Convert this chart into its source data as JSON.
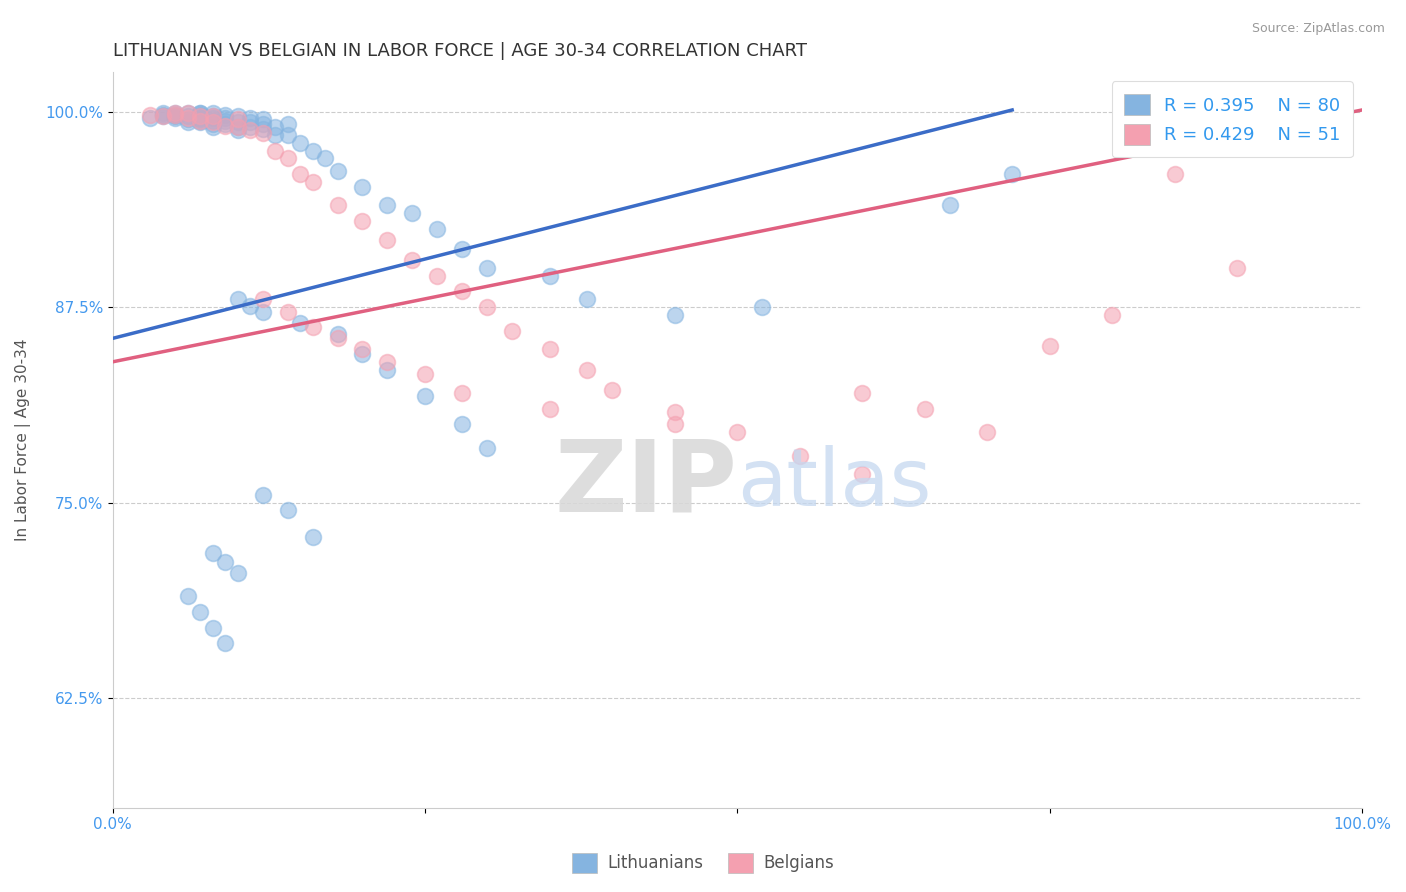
{
  "title": "LITHUANIAN VS BELGIAN IN LABOR FORCE | AGE 30-34 CORRELATION CHART",
  "source": "Source: ZipAtlas.com",
  "ylabel": "In Labor Force | Age 30-34",
  "xlim": [
    0.0,
    1.0
  ],
  "ylim": [
    0.555,
    1.025
  ],
  "yticks": [
    0.625,
    0.75,
    0.875,
    1.0
  ],
  "ytick_labels": [
    "62.5%",
    "75.0%",
    "87.5%",
    "100.0%"
  ],
  "xticks": [
    0.0,
    0.25,
    0.5,
    0.75,
    1.0
  ],
  "xtick_labels": [
    "0.0%",
    "",
    "",
    "",
    "100.0%"
  ],
  "legend_label1": "Lithuanians",
  "legend_label2": "Belgians",
  "blue_color": "#85B4E0",
  "pink_color": "#F4A0B0",
  "blue_line_color": "#3B6CC7",
  "pink_line_color": "#E06080",
  "title_fontsize": 13,
  "axis_label_fontsize": 11,
  "tick_fontsize": 11,
  "background_color": "#FFFFFF",
  "grid_color": "#CCCCCC",
  "watermark_zip": "ZIP",
  "watermark_atlas": "atlas",
  "lith_x": [
    0.03,
    0.04,
    0.04,
    0.04,
    0.05,
    0.05,
    0.05,
    0.05,
    0.06,
    0.06,
    0.06,
    0.06,
    0.07,
    0.07,
    0.07,
    0.07,
    0.07,
    0.07,
    0.07,
    0.07,
    0.08,
    0.08,
    0.08,
    0.08,
    0.08,
    0.08,
    0.09,
    0.09,
    0.09,
    0.09,
    0.1,
    0.1,
    0.1,
    0.1,
    0.11,
    0.11,
    0.11,
    0.12,
    0.12,
    0.12,
    0.13,
    0.13,
    0.14,
    0.14,
    0.15,
    0.16,
    0.17,
    0.18,
    0.2,
    0.22,
    0.24,
    0.26,
    0.28,
    0.3,
    0.35,
    0.38,
    0.45,
    0.52,
    0.67,
    0.72,
    0.1,
    0.11,
    0.12,
    0.15,
    0.18,
    0.2,
    0.22,
    0.25,
    0.28,
    0.3,
    0.12,
    0.14,
    0.16,
    0.08,
    0.09,
    0.1,
    0.06,
    0.07,
    0.08,
    0.09
  ],
  "lith_y": [
    0.996,
    0.997,
    0.998,
    0.999,
    0.996,
    0.997,
    0.998,
    0.999,
    0.993,
    0.995,
    0.997,
    0.999,
    0.993,
    0.994,
    0.995,
    0.996,
    0.997,
    0.998,
    0.999,
    0.999,
    0.99,
    0.992,
    0.994,
    0.996,
    0.997,
    0.999,
    0.992,
    0.994,
    0.996,
    0.998,
    0.988,
    0.99,
    0.993,
    0.997,
    0.99,
    0.993,
    0.996,
    0.989,
    0.992,
    0.995,
    0.985,
    0.99,
    0.985,
    0.992,
    0.98,
    0.975,
    0.97,
    0.962,
    0.952,
    0.94,
    0.935,
    0.925,
    0.912,
    0.9,
    0.895,
    0.88,
    0.87,
    0.875,
    0.94,
    0.96,
    0.88,
    0.876,
    0.872,
    0.865,
    0.858,
    0.845,
    0.835,
    0.818,
    0.8,
    0.785,
    0.755,
    0.745,
    0.728,
    0.718,
    0.712,
    0.705,
    0.69,
    0.68,
    0.67,
    0.66
  ],
  "belg_x": [
    0.03,
    0.04,
    0.05,
    0.05,
    0.06,
    0.06,
    0.07,
    0.07,
    0.08,
    0.08,
    0.09,
    0.1,
    0.1,
    0.11,
    0.12,
    0.13,
    0.14,
    0.15,
    0.16,
    0.18,
    0.2,
    0.22,
    0.24,
    0.26,
    0.28,
    0.3,
    0.32,
    0.35,
    0.38,
    0.4,
    0.45,
    0.5,
    0.55,
    0.6,
    0.65,
    0.7,
    0.75,
    0.8,
    0.85,
    0.9,
    0.12,
    0.14,
    0.16,
    0.18,
    0.2,
    0.22,
    0.25,
    0.28,
    0.35,
    0.45,
    0.6
  ],
  "belg_y": [
    0.998,
    0.997,
    0.998,
    0.999,
    0.996,
    0.999,
    0.994,
    0.997,
    0.993,
    0.997,
    0.991,
    0.99,
    0.995,
    0.988,
    0.986,
    0.975,
    0.97,
    0.96,
    0.955,
    0.94,
    0.93,
    0.918,
    0.905,
    0.895,
    0.885,
    0.875,
    0.86,
    0.848,
    0.835,
    0.822,
    0.808,
    0.795,
    0.78,
    0.768,
    0.81,
    0.795,
    0.85,
    0.87,
    0.96,
    0.9,
    0.88,
    0.872,
    0.862,
    0.855,
    0.848,
    0.84,
    0.832,
    0.82,
    0.81,
    0.8,
    0.82
  ],
  "blue_line_x0": 0.0,
  "blue_line_y0": 0.855,
  "blue_line_x1": 0.72,
  "blue_line_y1": 1.001,
  "pink_line_x0": 0.0,
  "pink_line_y0": 0.84,
  "pink_line_x1": 1.0,
  "pink_line_y1": 1.001
}
